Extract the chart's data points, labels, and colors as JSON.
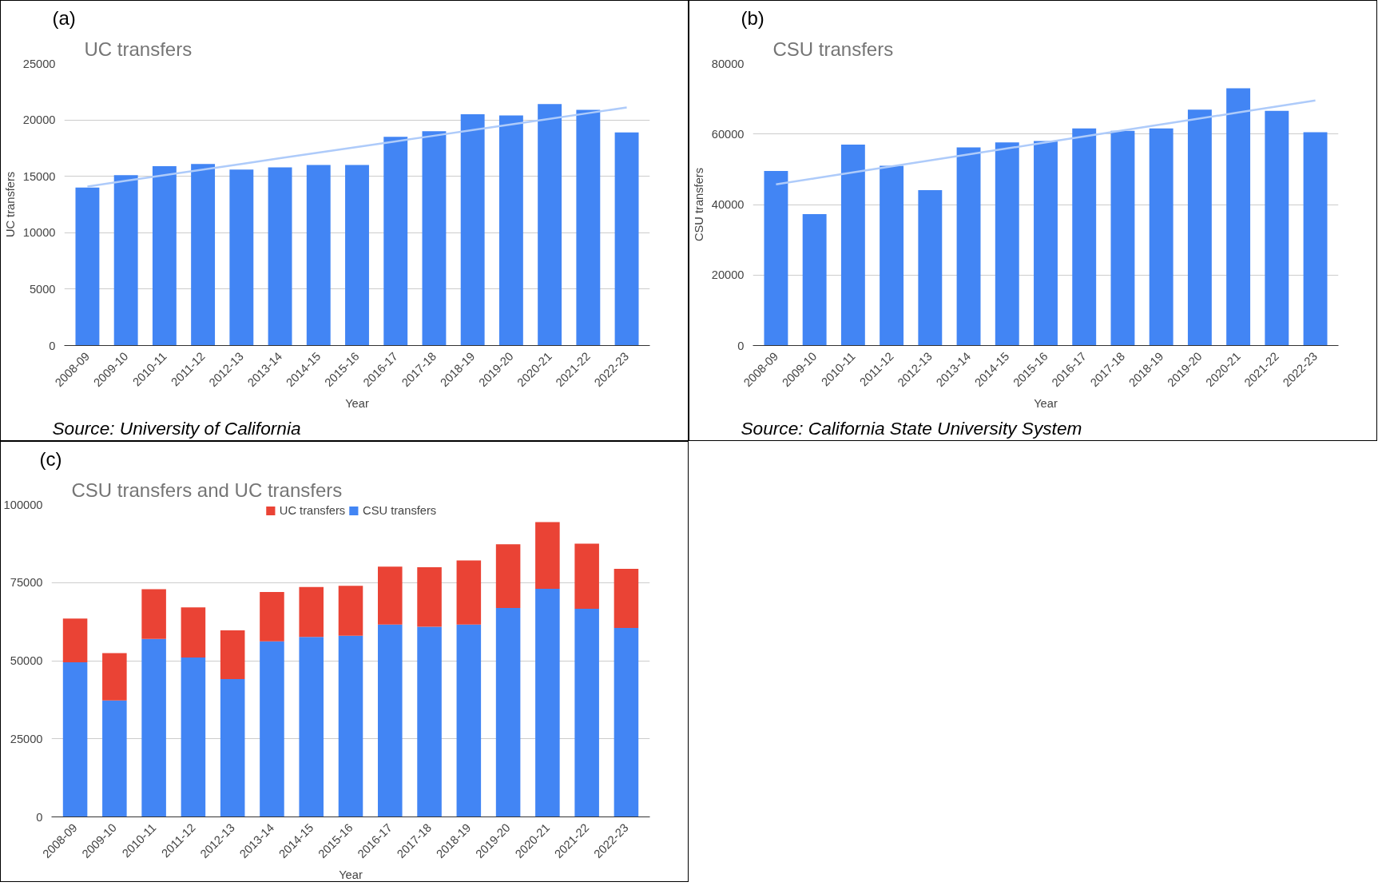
{
  "chart_data": [
    {
      "type": "bar",
      "title": "UC transfers",
      "xlabel": "Year",
      "ylabel": "UC transfers",
      "annotations": [
        "(a)",
        "Source: University of California"
      ],
      "categories": [
        "2008-09",
        "2009-10",
        "2010-11",
        "2011-12",
        "2012-13",
        "2013-14",
        "2014-15",
        "2015-16",
        "2016-17",
        "2017-18",
        "2018-19",
        "2019-20",
        "2020-21",
        "2021-22",
        "2022-23"
      ],
      "series": [
        {
          "type": "bar",
          "color": "#4285f4",
          "values": [
            14000,
            15100,
            15900,
            16100,
            15600,
            15800,
            16000,
            16000,
            18500,
            19000,
            20500,
            20400,
            21400,
            20900,
            18900
          ]
        },
        {
          "type": "line",
          "color": "#aecbfa",
          "values": [
            14100,
            14600,
            15100,
            15600,
            16100,
            16600,
            17100,
            17600,
            18100,
            18600,
            19100,
            19600,
            20100,
            20600,
            21100
          ]
        }
      ],
      "ylim": [
        0,
        25000
      ],
      "yticks": [
        0,
        5000,
        10000,
        15000,
        20000,
        25000
      ],
      "grid": "y"
    },
    {
      "type": "bar",
      "title": "CSU transfers",
      "xlabel": "Year",
      "ylabel": "CSU transfers",
      "annotations": [
        "(b)",
        "Source: California State University System"
      ],
      "categories": [
        "2008-09",
        "2009-10",
        "2010-11",
        "2011-12",
        "2012-13",
        "2013-14",
        "2014-15",
        "2015-16",
        "2016-17",
        "2017-18",
        "2018-19",
        "2019-20",
        "2020-21",
        "2021-22",
        "2022-23"
      ],
      "series": [
        {
          "type": "bar",
          "color": "#4285f4",
          "values": [
            49500,
            37300,
            57000,
            51000,
            44100,
            56200,
            57600,
            58000,
            61600,
            60900,
            61600,
            66900,
            73000,
            66600,
            60500
          ]
        },
        {
          "type": "line",
          "color": "#aecbfa",
          "values": [
            45700,
            47400,
            49100,
            50800,
            52500,
            54200,
            55900,
            57600,
            59300,
            61000,
            62700,
            64400,
            66100,
            67800,
            69500
          ]
        }
      ],
      "ylim": [
        0,
        80000
      ],
      "yticks": [
        0,
        20000,
        40000,
        60000,
        80000
      ],
      "grid": "y"
    },
    {
      "type": "bar",
      "stacked": true,
      "title": "CSU transfers and UC transfers",
      "xlabel": "Year",
      "annotations": [
        "(c)"
      ],
      "legend": "top",
      "categories": [
        "2008-09",
        "2009-10",
        "2010-11",
        "2011-12",
        "2012-13",
        "2013-14",
        "2014-15",
        "2015-16",
        "2016-17",
        "2017-18",
        "2018-19",
        "2019-20",
        "2020-21",
        "2021-22",
        "2022-23"
      ],
      "series": [
        {
          "name": "CSU transfers",
          "color": "#4285f4",
          "values": [
            49500,
            37300,
            57000,
            51000,
            44100,
            56200,
            57600,
            58000,
            61600,
            60900,
            61600,
            66900,
            73000,
            66600,
            60500
          ]
        },
        {
          "name": "UC transfers",
          "color": "#ea4335",
          "values": [
            14000,
            15100,
            15900,
            16100,
            15600,
            15800,
            16000,
            16000,
            18500,
            19000,
            20500,
            20400,
            21400,
            20900,
            18900
          ]
        }
      ],
      "ylim": [
        0,
        100000
      ],
      "yticks": [
        0,
        25000,
        50000,
        75000,
        100000
      ],
      "grid": "y"
    }
  ]
}
